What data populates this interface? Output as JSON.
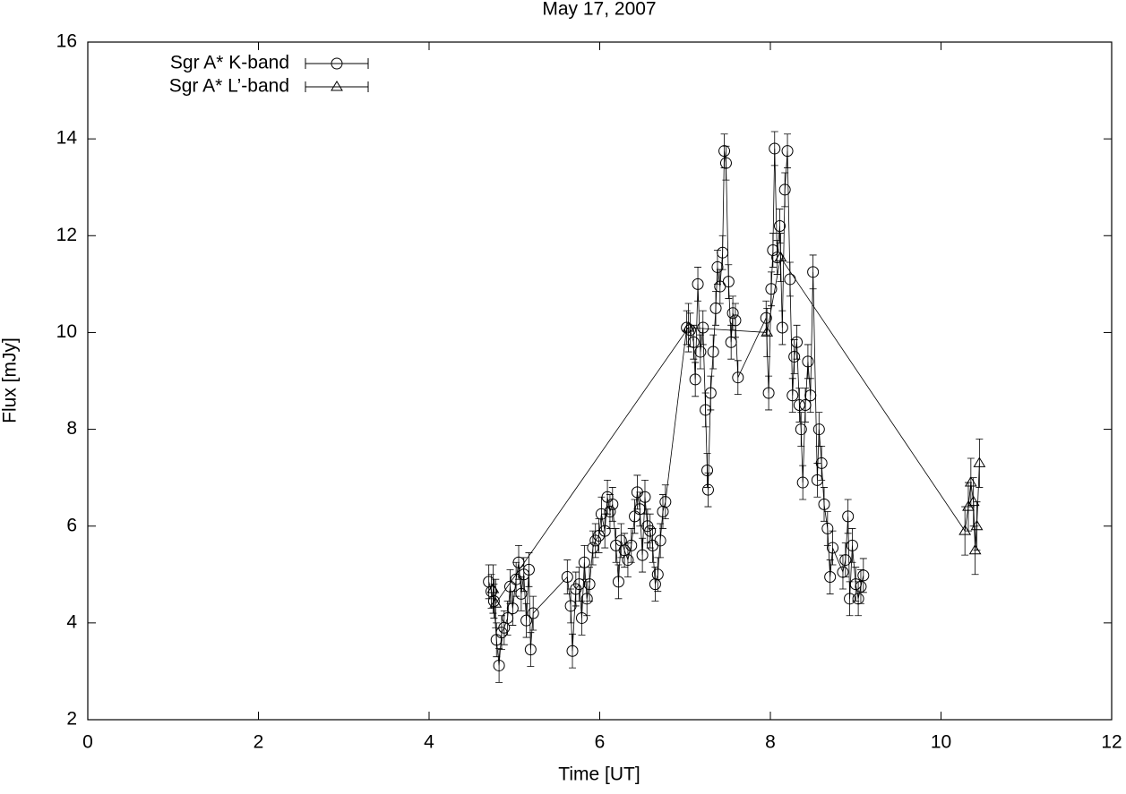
{
  "chart_data": {
    "type": "errorbar",
    "title": "May 17, 2007",
    "x_label": "Time [UT]",
    "y_label": "Flux [mJy]",
    "xlim": [
      0,
      12
    ],
    "xticks": [
      0,
      2,
      4,
      6,
      8,
      10,
      12
    ],
    "ylim": [
      2,
      16
    ],
    "yticks": [
      2,
      4,
      6,
      8,
      10,
      12,
      14,
      16
    ],
    "legend": "upper left",
    "series": [
      {
        "name": "Sgr A* K-band",
        "marker": "circle",
        "color": "#000000",
        "error": 0.35,
        "x": [
          4.7,
          4.73,
          4.76,
          4.79,
          4.82,
          4.85,
          4.88,
          4.92,
          4.95,
          4.98,
          5.02,
          5.05,
          5.08,
          5.11,
          5.14,
          5.17,
          5.19,
          5.22,
          5.62,
          5.66,
          5.68,
          5.72,
          5.76,
          5.79,
          5.82,
          5.85,
          5.88,
          5.92,
          5.95,
          5.99,
          6.02,
          6.06,
          6.09,
          6.12,
          6.15,
          6.19,
          6.22,
          6.25,
          6.29,
          6.33,
          6.37,
          6.41,
          6.44,
          6.47,
          6.5,
          6.53,
          6.56,
          6.59,
          6.62,
          6.65,
          6.68,
          6.71,
          6.74,
          6.77,
          7.02,
          7.06,
          7.1,
          7.12,
          7.15,
          7.18,
          7.21,
          7.24,
          7.26,
          7.27,
          7.3,
          7.33,
          7.36,
          7.38,
          7.41,
          7.44,
          7.46,
          7.48,
          7.51,
          7.54,
          7.56,
          7.59,
          7.62,
          7.95,
          7.98,
          8.01,
          8.03,
          8.05,
          8.08,
          8.11,
          8.14,
          8.17,
          8.2,
          8.23,
          8.26,
          8.28,
          8.31,
          8.34,
          8.36,
          8.38,
          8.41,
          8.44,
          8.47,
          8.5,
          8.55,
          8.57,
          8.6,
          8.63,
          8.67,
          8.7,
          8.73,
          8.85,
          8.88,
          8.91,
          8.93,
          8.96,
          9.0,
          9.03,
          9.06,
          9.09
        ],
        "values": [
          4.85,
          4.65,
          4.45,
          3.65,
          3.12,
          3.8,
          3.9,
          4.1,
          4.75,
          4.3,
          4.9,
          5.25,
          4.6,
          5.0,
          4.05,
          5.1,
          3.45,
          4.2,
          4.95,
          4.35,
          3.42,
          4.7,
          4.8,
          4.1,
          5.25,
          4.5,
          4.8,
          5.55,
          5.7,
          5.8,
          6.25,
          5.9,
          6.6,
          6.3,
          6.45,
          5.6,
          4.85,
          5.7,
          5.5,
          5.3,
          5.6,
          6.2,
          6.7,
          6.35,
          5.4,
          6.6,
          6.0,
          5.9,
          5.6,
          4.8,
          5.0,
          5.7,
          6.3,
          6.5,
          10.1,
          10.05,
          9.8,
          9.03,
          11.0,
          9.6,
          10.1,
          8.4,
          7.15,
          6.75,
          8.75,
          9.6,
          10.5,
          11.35,
          10.95,
          11.65,
          13.75,
          13.5,
          11.05,
          9.8,
          10.4,
          10.25,
          9.07,
          10.3,
          8.75,
          10.9,
          11.7,
          13.8,
          11.55,
          12.2,
          10.1,
          12.95,
          13.75,
          11.1,
          8.7,
          9.5,
          9.8,
          8.5,
          8.0,
          6.9,
          8.5,
          9.4,
          8.7,
          11.25,
          6.95,
          8.0,
          7.3,
          6.45,
          5.95,
          4.95,
          5.55,
          5.05,
          5.3,
          6.2,
          4.5,
          5.6,
          4.8,
          4.5,
          4.75,
          4.98
        ]
      },
      {
        "name": "Sgr A* L’-band",
        "marker": "triangle",
        "color": "#000000",
        "error": 0.5,
        "x": [
          4.75,
          4.78,
          7.04,
          7.96,
          8.12,
          10.28,
          10.32,
          10.35,
          10.38,
          10.4,
          10.42,
          10.45
        ],
        "values": [
          4.7,
          4.4,
          10.1,
          10.0,
          11.55,
          5.9,
          6.4,
          6.9,
          6.5,
          5.5,
          6.0,
          7.3
        ]
      }
    ]
  }
}
